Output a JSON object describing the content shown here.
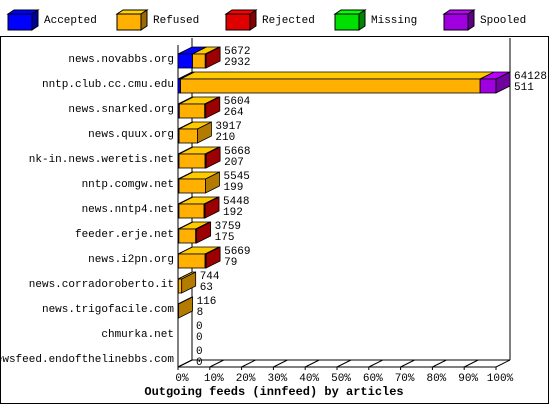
{
  "chart_data": {
    "type": "bar3d",
    "title": "Outgoing feeds (innfeed) by articles",
    "categories": [
      "news.novabbs.org",
      "nntp.club.cc.cmu.edu",
      "news.snarked.org",
      "news.quux.org",
      "nk-in.news.weretis.net",
      "nntp.comgw.net",
      "news.nntp4.net",
      "feeder.erje.net",
      "news.i2pn.org",
      "news.corradoroberto.it",
      "news.trigofacile.com",
      "chmurka.net",
      "newsfeed.endofthelinebbs.com"
    ],
    "series": [
      {
        "name": "Accepted",
        "color": "#0000ff",
        "values": [
          4.57,
          0.8,
          0.41,
          0.33,
          0.32,
          0.31,
          0.3,
          0.27,
          0.12,
          0.1,
          0.01,
          0,
          0
        ]
      },
      {
        "name": "Refused",
        "color": "#ffb000",
        "values": [
          4.0,
          94.2,
          8.0,
          5.78,
          8.2,
          8.34,
          7.9,
          5.3,
          8.4,
          1.06,
          0.17,
          0,
          0
        ]
      },
      {
        "name": "Rejected",
        "color": "#e00000",
        "values": [
          0.27,
          0,
          0.33,
          0,
          0.32,
          0,
          0.3,
          0.29,
          0.32,
          0,
          0,
          0,
          0
        ]
      },
      {
        "name": "Missing",
        "color": "#00e000",
        "values": [
          0,
          0,
          0,
          0,
          0,
          0,
          0,
          0,
          0,
          0,
          0,
          0,
          0
        ]
      },
      {
        "name": "Spooled",
        "color": "#a000e0",
        "values": [
          0,
          5.0,
          0,
          0,
          0,
          0,
          0,
          0,
          0,
          0,
          0,
          0,
          0
        ]
      }
    ],
    "row_labels": [
      [
        5672,
        2932
      ],
      [
        64128,
        511
      ],
      [
        5604,
        264
      ],
      [
        3917,
        210
      ],
      [
        5668,
        207
      ],
      [
        5545,
        199
      ],
      [
        5448,
        192
      ],
      [
        3759,
        175
      ],
      [
        5669,
        79
      ],
      [
        744,
        63
      ],
      [
        116,
        8
      ],
      [
        0,
        0
      ],
      [
        0,
        0
      ]
    ],
    "xlim": [
      0,
      100
    ],
    "xticks": [
      {
        "value": 0,
        "label": "0%"
      },
      {
        "value": 10,
        "label": "10%"
      },
      {
        "value": 20,
        "label": "20%"
      },
      {
        "value": 30,
        "label": "30%"
      },
      {
        "value": 40,
        "label": "40%"
      },
      {
        "value": 50,
        "label": "50%"
      },
      {
        "value": 60,
        "label": "60%"
      },
      {
        "value": 70,
        "label": "70%"
      },
      {
        "value": 80,
        "label": "80%"
      },
      {
        "value": 90,
        "label": "90%"
      },
      {
        "value": 100,
        "label": "100%"
      }
    ]
  }
}
